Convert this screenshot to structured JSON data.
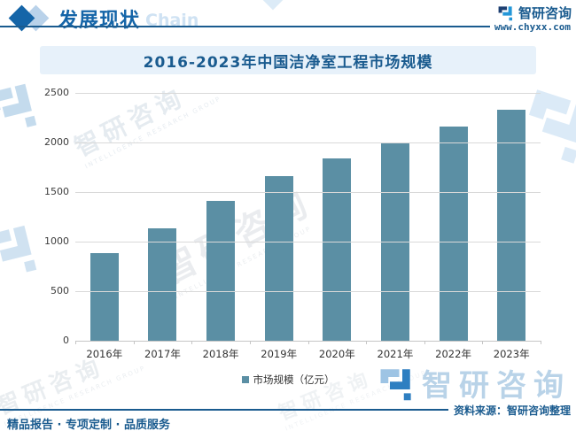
{
  "header": {
    "section_title": "发展现状",
    "backdrop_word": "Chain",
    "brand_name": "智研咨询",
    "website": "www.chyxx.com"
  },
  "chart_data": {
    "type": "bar",
    "title": "2016-2023年中国洁净室工程市场规模",
    "categories": [
      "2016年",
      "2017年",
      "2018年",
      "2019年",
      "2020年",
      "2021年",
      "2022年",
      "2023年"
    ],
    "values": [
      880,
      1130,
      1410,
      1660,
      1840,
      2000,
      2160,
      2330
    ],
    "series_name": "市场规模（亿元）",
    "xlabel": "",
    "ylabel": "",
    "ylim": [
      0,
      2500
    ],
    "yticks": [
      0,
      500,
      1000,
      1500,
      2000,
      2500
    ],
    "grid": true,
    "legend_position": "bottom",
    "bar_color": "#5b8fa4"
  },
  "legend": {
    "label": "市场规模（亿元）"
  },
  "footer": {
    "source": "资料来源：智研咨询整理",
    "services": "精品报告 · 专项定制 · 品质服务"
  },
  "watermark": {
    "brand": "智研咨询",
    "brand_en": "INTELLIGENCE RESEARCH GROUP"
  },
  "colors": {
    "accent_dark_blue": "#1a5b8f",
    "header_blue": "#1565a8",
    "banner_bg": "#e7f1fa",
    "bar": "#5b8fa4",
    "grid": "#d9d9d9",
    "logo_navy": "#1d3f72",
    "logo_blue": "#2396d8",
    "watermark_blue": "#b9d3e8"
  }
}
